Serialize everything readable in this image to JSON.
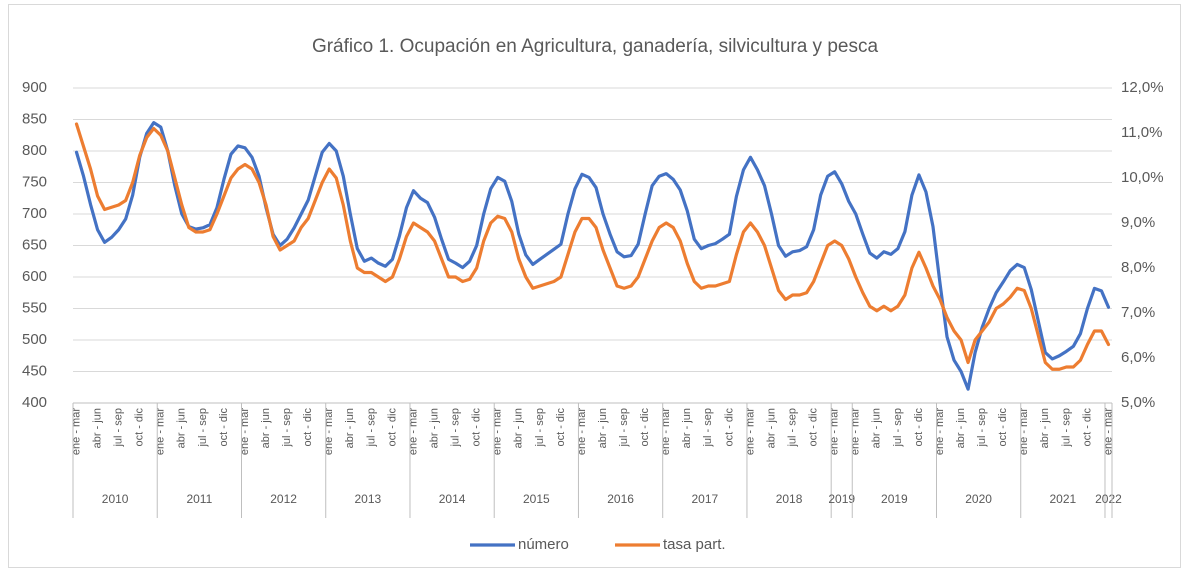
{
  "chart_data": {
    "type": "line",
    "title": "Gráfico 1. Ocupación en Agricultura, ganadería, silvicultura y pesca",
    "categories": [
      "ene - mar",
      null,
      null,
      "abr - jun",
      null,
      null,
      "jul - sep",
      null,
      null,
      "oct - dic",
      null,
      null,
      "ene - mar",
      null,
      null,
      "abr - jun",
      null,
      null,
      "jul - sep",
      null,
      null,
      "oct - dic",
      null,
      null,
      "ene - mar",
      null,
      null,
      "abr - jun",
      null,
      null,
      "jul - sep",
      null,
      null,
      "oct - dic",
      null,
      null,
      "ene - mar",
      null,
      null,
      "abr - jun",
      null,
      null,
      "jul - sep",
      null,
      null,
      "oct - dic",
      null,
      null,
      "ene - mar",
      null,
      null,
      "abr - jun",
      null,
      null,
      "jul - sep",
      null,
      null,
      "oct - dic",
      null,
      null,
      "ene - mar",
      null,
      null,
      "abr - jun",
      null,
      null,
      "jul - sep",
      null,
      null,
      "oct - dic",
      null,
      null,
      "ene - mar",
      null,
      null,
      "abr - jun",
      null,
      null,
      "jul - sep",
      null,
      null,
      "oct - dic",
      null,
      null,
      "ene - mar",
      null,
      null,
      "abr - jun",
      null,
      null,
      "jul - sep",
      null,
      null,
      "oct - dic",
      null,
      null,
      "ene - mar",
      null,
      null,
      "abr - jun",
      null,
      null,
      "jul - sep",
      null,
      null,
      "oct - dic",
      null,
      null,
      "ene - mar",
      null,
      null,
      "ene - mar",
      null,
      null,
      "abr - jun",
      null,
      null,
      "jul - sep",
      null,
      null,
      "oct - dic",
      null,
      null,
      "ene - mar",
      null,
      null,
      "abr - jun",
      null,
      null,
      "jul - sep",
      null,
      null,
      "oct - dic",
      null,
      null,
      "ene - mar",
      null,
      null,
      "abr - jun",
      null,
      null,
      "jul - sep",
      null,
      null,
      "oct - dic",
      null,
      null,
      "ene - mar"
    ],
    "category_groups": [
      {
        "label": "2010",
        "span": 12
      },
      {
        "label": "2011",
        "span": 12
      },
      {
        "label": "2012",
        "span": 12
      },
      {
        "label": "2013",
        "span": 12
      },
      {
        "label": "2014",
        "span": 12
      },
      {
        "label": "2015",
        "span": 12
      },
      {
        "label": "2016",
        "span": 12
      },
      {
        "label": "2017",
        "span": 12
      },
      {
        "label": "2018",
        "span": 12
      },
      {
        "label": "2019",
        "span": 3
      },
      {
        "label": "2019",
        "span": 12
      },
      {
        "label": "2020",
        "span": 12
      },
      {
        "label": "2021",
        "span": 12
      },
      {
        "label": "2022",
        "span": 1
      }
    ],
    "series": [
      {
        "name": "número",
        "color": "#4472c4",
        "axis": "y",
        "values": [
          798,
          760,
          715,
          675,
          655,
          663,
          675,
          692,
          730,
          790,
          828,
          845,
          838,
          800,
          745,
          700,
          680,
          676,
          678,
          683,
          710,
          755,
          795,
          808,
          805,
          790,
          760,
          710,
          668,
          650,
          660,
          678,
          700,
          722,
          760,
          798,
          812,
          800,
          760,
          700,
          645,
          625,
          630,
          622,
          617,
          628,
          665,
          710,
          737,
          725,
          718,
          695,
          660,
          628,
          622,
          615,
          625,
          650,
          700,
          740,
          758,
          752,
          720,
          668,
          635,
          620,
          628,
          636,
          644,
          652,
          700,
          740,
          763,
          758,
          742,
          700,
          668,
          640,
          632,
          634,
          652,
          700,
          745,
          760,
          764,
          755,
          738,
          705,
          660,
          645,
          650,
          653,
          660,
          668,
          728,
          770,
          790,
          770,
          745,
          700,
          650,
          633,
          640,
          642,
          648,
          675,
          730,
          760,
          767,
          748,
          720,
          700,
          668,
          638,
          630,
          640,
          636,
          645,
          672,
          730,
          762,
          735,
          680,
          590,
          505,
          468,
          450,
          422,
          480,
          520,
          550,
          575,
          592,
          610,
          620,
          615,
          580,
          530,
          480,
          470,
          475,
          482,
          490,
          510,
          550,
          582,
          578,
          552
        ]
      },
      {
        "name": "tasa part.",
        "color": "#ed7d31",
        "axis": "y2",
        "values": [
          11.2,
          10.7,
          10.2,
          9.6,
          9.3,
          9.35,
          9.4,
          9.5,
          9.9,
          10.5,
          10.9,
          11.1,
          10.95,
          10.6,
          10.0,
          9.4,
          8.9,
          8.8,
          8.8,
          8.85,
          9.2,
          9.6,
          10.0,
          10.2,
          10.3,
          10.2,
          9.9,
          9.4,
          8.7,
          8.4,
          8.5,
          8.6,
          8.9,
          9.1,
          9.5,
          9.9,
          10.2,
          10.0,
          9.4,
          8.6,
          8.0,
          7.9,
          7.9,
          7.8,
          7.7,
          7.8,
          8.2,
          8.7,
          9.0,
          8.9,
          8.8,
          8.6,
          8.2,
          7.8,
          7.8,
          7.7,
          7.75,
          8.0,
          8.6,
          9.0,
          9.15,
          9.1,
          8.8,
          8.2,
          7.8,
          7.55,
          7.6,
          7.65,
          7.7,
          7.8,
          8.3,
          8.8,
          9.1,
          9.1,
          8.9,
          8.4,
          8.0,
          7.6,
          7.55,
          7.6,
          7.8,
          8.2,
          8.6,
          8.9,
          9.0,
          8.9,
          8.6,
          8.1,
          7.7,
          7.55,
          7.6,
          7.6,
          7.65,
          7.7,
          8.3,
          8.8,
          9.0,
          8.8,
          8.5,
          8.0,
          7.5,
          7.3,
          7.4,
          7.4,
          7.45,
          7.7,
          8.1,
          8.5,
          8.6,
          8.5,
          8.2,
          7.8,
          7.45,
          7.15,
          7.05,
          7.15,
          7.05,
          7.15,
          7.4,
          8.0,
          8.35,
          8.0,
          7.6,
          7.3,
          6.9,
          6.6,
          6.4,
          5.9,
          6.4,
          6.6,
          6.8,
          7.1,
          7.2,
          7.35,
          7.55,
          7.5,
          7.1,
          6.5,
          5.9,
          5.75,
          5.75,
          5.8,
          5.8,
          5.95,
          6.3,
          6.6,
          6.6,
          6.3
        ]
      }
    ],
    "ylim": [
      400,
      900
    ],
    "yticks": [
      400,
      450,
      500,
      550,
      600,
      650,
      700,
      750,
      800,
      850,
      900
    ],
    "y2lim": [
      5,
      12
    ],
    "y2ticks": [
      {
        "value": 5,
        "label": "5,0%"
      },
      {
        "value": 6,
        "label": "6,0%"
      },
      {
        "value": 7,
        "label": "7,0%"
      },
      {
        "value": 8,
        "label": "8,0%"
      },
      {
        "value": 9,
        "label": "9,0%"
      },
      {
        "value": 10,
        "label": "10,0%"
      },
      {
        "value": 11,
        "label": "11,0%"
      },
      {
        "value": 12,
        "label": "12,0%"
      }
    ],
    "grid": true,
    "legend": "bottom"
  }
}
